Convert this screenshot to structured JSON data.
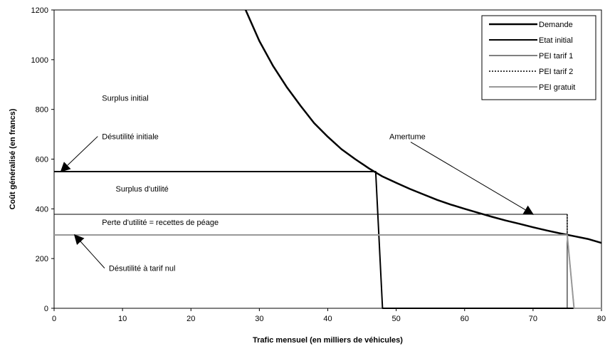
{
  "chart_data": {
    "type": "line",
    "title": "",
    "xlabel": "Trafic mensuel (en milliers de véhicules)",
    "ylabel": "Coût généralisé (en francs)",
    "xlim": [
      0,
      80
    ],
    "ylim": [
      0,
      1200
    ],
    "xticks": [
      0,
      10,
      20,
      30,
      40,
      50,
      60,
      70,
      80
    ],
    "yticks": [
      0,
      200,
      400,
      600,
      800,
      1000,
      1200
    ],
    "grid": false,
    "legend_position": "top-right",
    "series": [
      {
        "name": "Demande",
        "color": "#000000",
        "style": "solid-thick",
        "points": [
          [
            28,
            1200
          ],
          [
            30,
            1075
          ],
          [
            32,
            975
          ],
          [
            34,
            890
          ],
          [
            36,
            815
          ],
          [
            38,
            745
          ],
          [
            40,
            690
          ],
          [
            42,
            640
          ],
          [
            44,
            600
          ],
          [
            46,
            563
          ],
          [
            48,
            530
          ],
          [
            50,
            505
          ],
          [
            52,
            480
          ],
          [
            54,
            458
          ],
          [
            56,
            436
          ],
          [
            58,
            417
          ],
          [
            60,
            400
          ],
          [
            62,
            384
          ],
          [
            64,
            368
          ],
          [
            66,
            353
          ],
          [
            68,
            340
          ],
          [
            70,
            326
          ],
          [
            72,
            313
          ],
          [
            74,
            301
          ],
          [
            76,
            290
          ],
          [
            78,
            279
          ],
          [
            80,
            263
          ]
        ]
      },
      {
        "name": "Etat initial",
        "color": "#000000",
        "style": "solid-medium",
        "points": [
          [
            0,
            550
          ],
          [
            47,
            550
          ],
          [
            48,
            0
          ],
          [
            80,
            0
          ]
        ]
      },
      {
        "name": "PEI tarif 1",
        "color": "#000000",
        "style": "solid-thin",
        "points": [
          [
            0,
            378
          ],
          [
            75,
            378
          ],
          [
            75,
            0
          ]
        ]
      },
      {
        "name": "PEI tarif 2",
        "color": "#000000",
        "style": "dotted",
        "points": [
          [
            75,
            378
          ],
          [
            75,
            295
          ],
          [
            76,
            0
          ]
        ]
      },
      {
        "name": "PEI gratuit",
        "color": "#999999",
        "style": "solid-medium",
        "points": [
          [
            0,
            295
          ],
          [
            75,
            295
          ],
          [
            76,
            0
          ],
          [
            80,
            0
          ]
        ]
      }
    ],
    "annotations": [
      {
        "id": "surplus-initial",
        "text": "Surplus initial",
        "x": 7,
        "y": 835,
        "arrow": false
      },
      {
        "id": "desutilite-initiale",
        "text": "Désutilité initiale",
        "x": 7,
        "y": 680,
        "arrow": true,
        "arrow_to": [
          1,
          550
        ]
      },
      {
        "id": "surplus-utilite",
        "text": "Surplus d'utilité",
        "x": 9,
        "y": 470,
        "arrow": false
      },
      {
        "id": "amertume",
        "text": "Amertume",
        "x": 49,
        "y": 680,
        "arrow": true,
        "arrow_to": [
          70,
          378
        ]
      },
      {
        "id": "perte-utilite",
        "text": "Perte d'utilité = recettes de péage",
        "x": 7,
        "y": 335,
        "arrow": false
      },
      {
        "id": "desutilite-tarif-nul",
        "text": "Désutilité à tarif nul",
        "x": 8,
        "y": 150,
        "arrow": true,
        "arrow_to": [
          3,
          295
        ]
      }
    ]
  }
}
